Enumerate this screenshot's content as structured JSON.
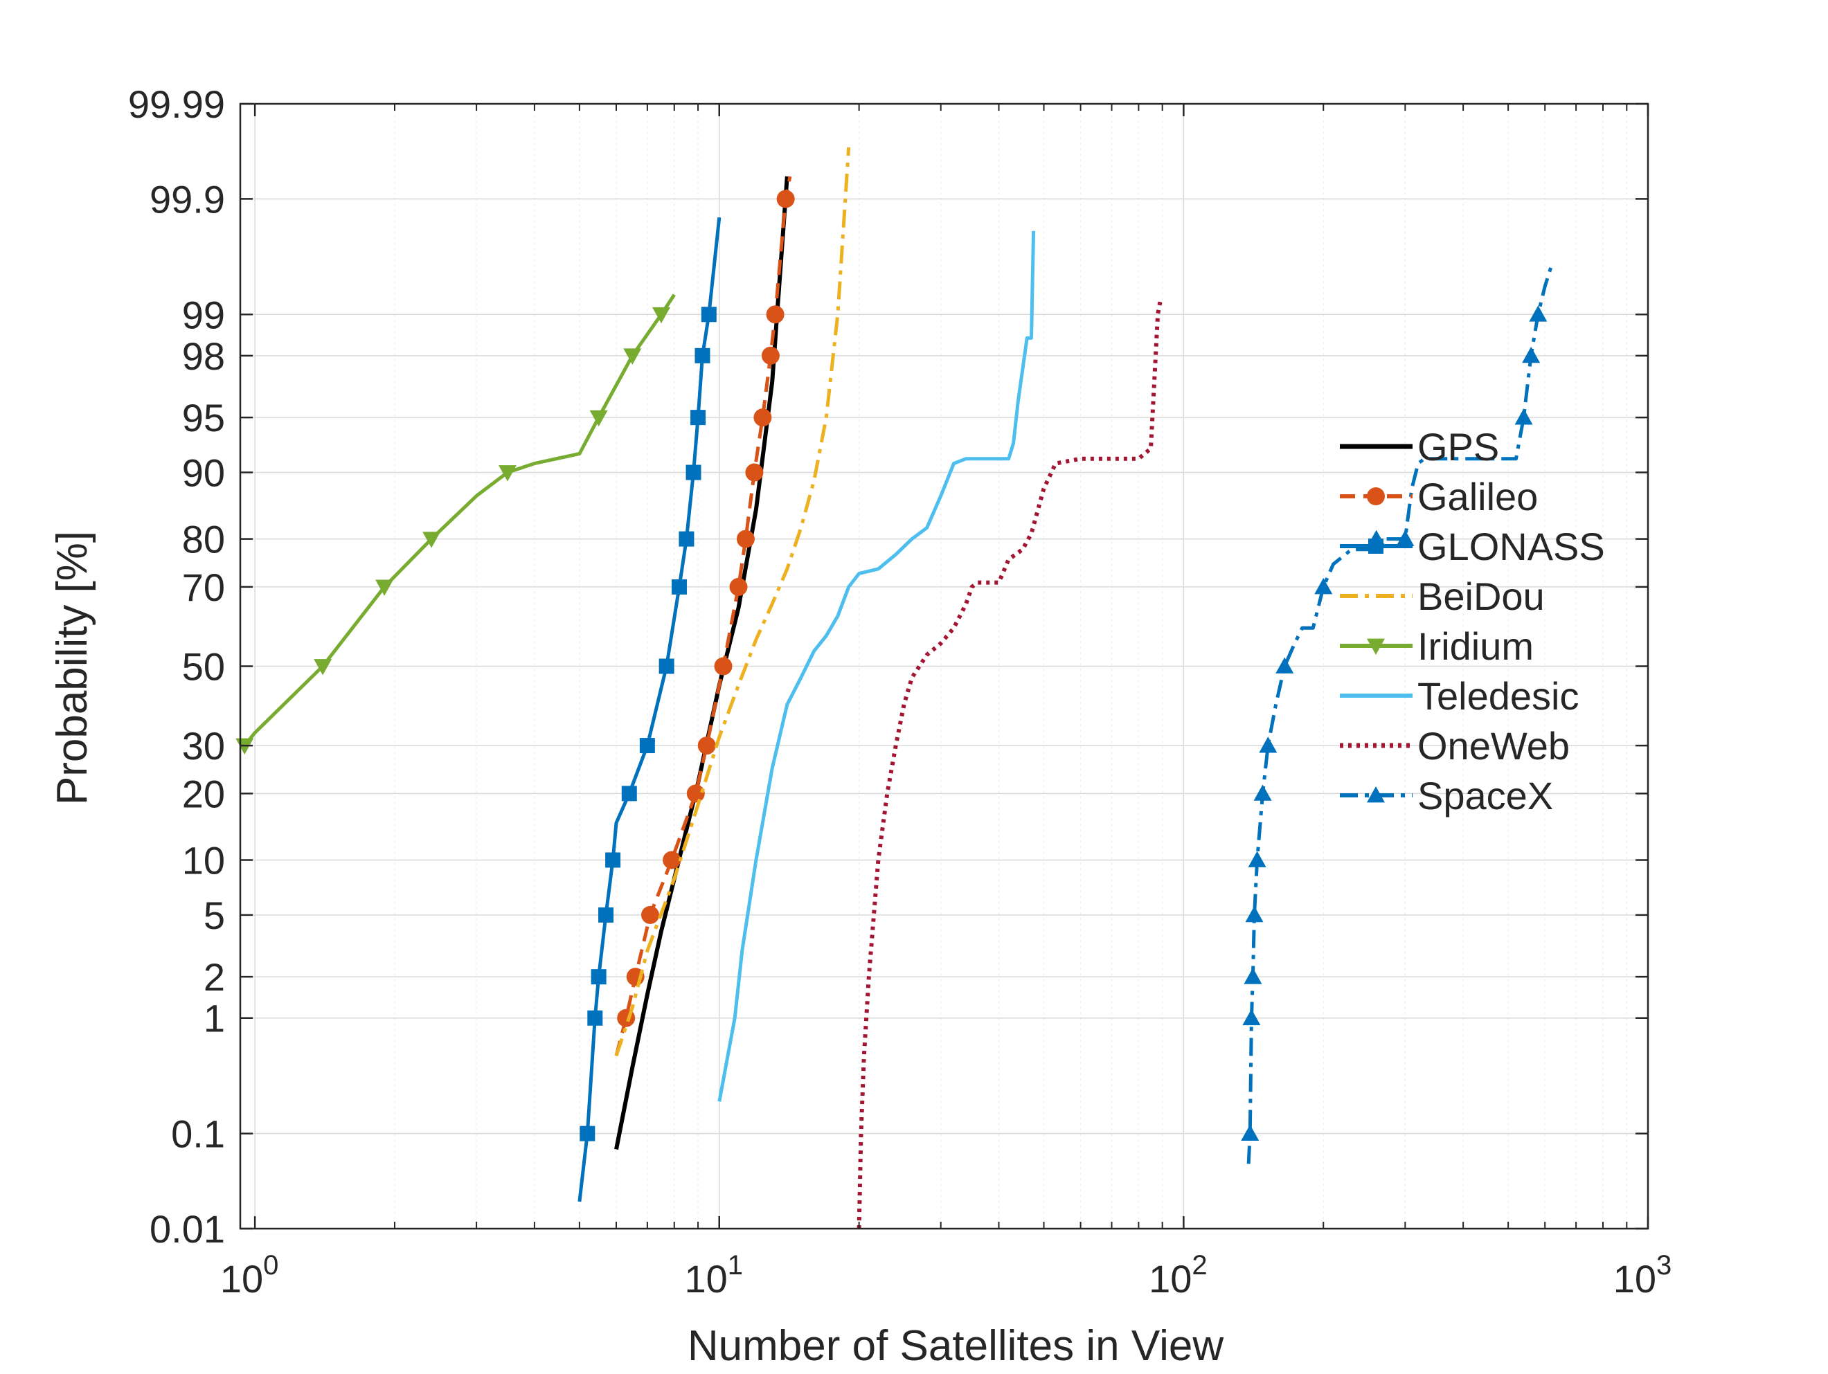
{
  "chart_data": {
    "type": "line",
    "title": "",
    "xlabel": "Number of Satellites in View",
    "ylabel": "Probability [%]",
    "x_scale": "log",
    "y_scale": "normal-probability",
    "xlim": [
      0.93,
      1000
    ],
    "ylim": [
      0.01,
      99.99
    ],
    "grid": true,
    "legend_position": "right",
    "x_ticks": [
      {
        "value": 1,
        "base": "10",
        "exp": "0"
      },
      {
        "value": 10,
        "base": "10",
        "exp": "1"
      },
      {
        "value": 100,
        "base": "10",
        "exp": "2"
      },
      {
        "value": 1000,
        "base": "10",
        "exp": "3"
      }
    ],
    "y_ticks": [
      {
        "value": 0.01,
        "label": "0.01"
      },
      {
        "value": 0.1,
        "label": "0.1"
      },
      {
        "value": 1,
        "label": "1"
      },
      {
        "value": 2,
        "label": "2"
      },
      {
        "value": 5,
        "label": "5"
      },
      {
        "value": 10,
        "label": "10"
      },
      {
        "value": 20,
        "label": "20"
      },
      {
        "value": 30,
        "label": "30"
      },
      {
        "value": 50,
        "label": "50"
      },
      {
        "value": 70,
        "label": "70"
      },
      {
        "value": 80,
        "label": "80"
      },
      {
        "value": 90,
        "label": "90"
      },
      {
        "value": 95,
        "label": "95"
      },
      {
        "value": 98,
        "label": "98"
      },
      {
        "value": 99,
        "label": "99"
      },
      {
        "value": 99.9,
        "label": "99.9"
      },
      {
        "value": 99.99,
        "label": "99.99"
      }
    ],
    "series": [
      {
        "name": "GPS",
        "color": "#000000",
        "dash": "solid",
        "width": 6,
        "marker": "none",
        "points": [
          [
            6,
            0.07
          ],
          [
            6.5,
            0.4
          ],
          [
            7,
            1.5
          ],
          [
            7.5,
            4
          ],
          [
            8,
            8
          ],
          [
            8.5,
            14
          ],
          [
            9,
            22
          ],
          [
            10,
            45
          ],
          [
            11,
            65
          ],
          [
            12,
            85
          ],
          [
            13,
            97
          ],
          [
            14,
            99.94
          ]
        ]
      },
      {
        "name": "Galileo",
        "color": "#d95319",
        "dash": "dash",
        "width": 5,
        "marker": "circle",
        "points": [
          [
            6,
            0.5
          ],
          [
            6.3,
            1
          ],
          [
            6.6,
            2
          ],
          [
            7.1,
            5
          ],
          [
            7.9,
            10
          ],
          [
            8.9,
            20
          ],
          [
            9.4,
            30
          ],
          [
            10.2,
            50
          ],
          [
            11,
            70
          ],
          [
            11.4,
            80
          ],
          [
            11.9,
            90
          ],
          [
            12.4,
            95
          ],
          [
            12.9,
            98
          ],
          [
            13.2,
            99
          ],
          [
            13.9,
            99.9
          ],
          [
            14.2,
            99.94
          ]
        ]
      },
      {
        "name": "GLONASS",
        "color": "#0072bd",
        "dash": "solid",
        "width": 5,
        "marker": "square",
        "points": [
          [
            5,
            0.02
          ],
          [
            5.2,
            0.1
          ],
          [
            5.4,
            1
          ],
          [
            5.5,
            2
          ],
          [
            5.7,
            5
          ],
          [
            5.9,
            10
          ],
          [
            6,
            15
          ],
          [
            6.4,
            20
          ],
          [
            7,
            30
          ],
          [
            7.7,
            50
          ],
          [
            8.2,
            70
          ],
          [
            8.5,
            80
          ],
          [
            8.8,
            90
          ],
          [
            9,
            95
          ],
          [
            9.2,
            98
          ],
          [
            9.5,
            99
          ],
          [
            10,
            99.85
          ]
        ]
      },
      {
        "name": "BeiDou",
        "color": "#edb120",
        "dash": "dashdot",
        "width": 5,
        "marker": "none",
        "points": [
          [
            6,
            0.5
          ],
          [
            6.5,
            1.2
          ],
          [
            7,
            3
          ],
          [
            8,
            8
          ],
          [
            9,
            18
          ],
          [
            10,
            32
          ],
          [
            11,
            45
          ],
          [
            12,
            57
          ],
          [
            13,
            66
          ],
          [
            14,
            74
          ],
          [
            15,
            82
          ],
          [
            16,
            89
          ],
          [
            17,
            95
          ],
          [
            18,
            99
          ],
          [
            19,
            99.97
          ]
        ]
      },
      {
        "name": "Iridium",
        "color": "#77ac30",
        "dash": "solid",
        "width": 5,
        "marker": "triangle-down",
        "points": [
          [
            0.95,
            30
          ],
          [
            1,
            33
          ],
          [
            1.4,
            50
          ],
          [
            1.9,
            70
          ],
          [
            2.4,
            80
          ],
          [
            3,
            87
          ],
          [
            3.5,
            90
          ],
          [
            4,
            91
          ],
          [
            5,
            92
          ],
          [
            5.5,
            95
          ],
          [
            6.5,
            98
          ],
          [
            7.5,
            99
          ],
          [
            8,
            99.3
          ]
        ]
      },
      {
        "name": "Teledesic",
        "color": "#4dbeee",
        "dash": "solid",
        "width": 5,
        "marker": "none",
        "points": [
          [
            10,
            0.2
          ],
          [
            10.8,
            1
          ],
          [
            11.2,
            3
          ],
          [
            12,
            10
          ],
          [
            13,
            25
          ],
          [
            14,
            40
          ],
          [
            15,
            47
          ],
          [
            16,
            54
          ],
          [
            17,
            58
          ],
          [
            18,
            63
          ],
          [
            19,
            70
          ],
          [
            20,
            73
          ],
          [
            22,
            74
          ],
          [
            24,
            77
          ],
          [
            26,
            80
          ],
          [
            28,
            82
          ],
          [
            30,
            87
          ],
          [
            32,
            91
          ],
          [
            34,
            91.5
          ],
          [
            42,
            91.5
          ],
          [
            43,
            93
          ],
          [
            44,
            96
          ],
          [
            46,
            98.5
          ],
          [
            47,
            98.5
          ],
          [
            47.5,
            99.8
          ]
        ]
      },
      {
        "name": "OneWeb",
        "color": "#a2142f",
        "dash": "dot",
        "width": 6,
        "marker": "none",
        "points": [
          [
            20,
            0.01
          ],
          [
            20.2,
            0.1
          ],
          [
            20.5,
            0.5
          ],
          [
            21,
            2
          ],
          [
            22,
            10
          ],
          [
            23,
            20
          ],
          [
            24,
            30
          ],
          [
            25,
            40
          ],
          [
            26,
            47
          ],
          [
            28,
            53
          ],
          [
            30,
            56
          ],
          [
            32,
            60
          ],
          [
            34,
            66
          ],
          [
            35,
            70
          ],
          [
            36,
            71
          ],
          [
            40,
            71
          ],
          [
            42,
            76
          ],
          [
            45,
            78
          ],
          [
            47,
            81
          ],
          [
            50,
            88
          ],
          [
            53,
            91
          ],
          [
            60,
            91.5
          ],
          [
            80,
            91.5
          ],
          [
            85,
            92.5
          ],
          [
            88,
            99
          ],
          [
            89,
            99.2
          ]
        ]
      },
      {
        "name": "SpaceX",
        "color": "#0072bd",
        "dash": "dashdot",
        "width": 5,
        "marker": "triangle-up",
        "points": [
          [
            138,
            0.05
          ],
          [
            139,
            0.1
          ],
          [
            140,
            1
          ],
          [
            141,
            2
          ],
          [
            142,
            5
          ],
          [
            144,
            10
          ],
          [
            148,
            20
          ],
          [
            152,
            30
          ],
          [
            158,
            40
          ],
          [
            165,
            50
          ],
          [
            172,
            55
          ],
          [
            180,
            60
          ],
          [
            190,
            60
          ],
          [
            200,
            70
          ],
          [
            210,
            75
          ],
          [
            230,
            78
          ],
          [
            250,
            78
          ],
          [
            260,
            80
          ],
          [
            300,
            80
          ],
          [
            310,
            88
          ],
          [
            320,
            91
          ],
          [
            330,
            91.5
          ],
          [
            520,
            91.5
          ],
          [
            540,
            95
          ],
          [
            560,
            98
          ],
          [
            580,
            99
          ],
          [
            600,
            99.4
          ],
          [
            620,
            99.6
          ]
        ]
      }
    ]
  }
}
